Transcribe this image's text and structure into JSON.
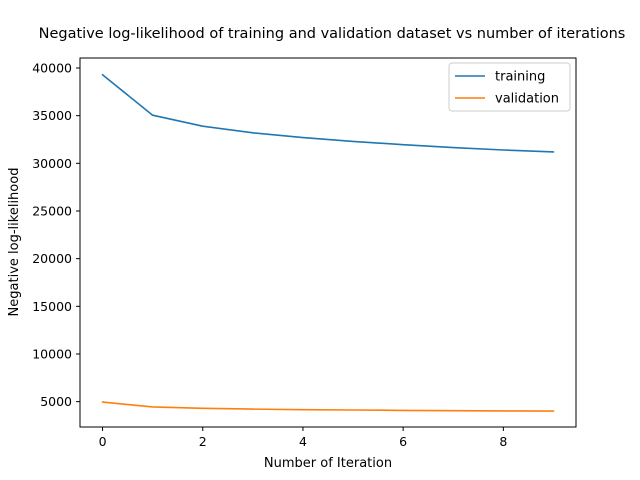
{
  "chart_data": {
    "type": "line",
    "title": "Negative log-likelihood of training and validation dataset vs number of iterations",
    "xlabel": "Number of Iteration",
    "ylabel": "Negative log-likelihood",
    "x": [
      0,
      1,
      2,
      3,
      4,
      5,
      6,
      7,
      8,
      9
    ],
    "xlim": [
      -0.45,
      9.45
    ],
    "ylim": [
      2340,
      41050
    ],
    "xticks": [
      0,
      2,
      4,
      6,
      8
    ],
    "yticks": [
      5000,
      10000,
      15000,
      20000,
      25000,
      30000,
      35000,
      40000
    ],
    "grid": false,
    "legend_position": "top-right",
    "series": [
      {
        "name": "training",
        "color": "#1f77b4",
        "values": [
          39300,
          35050,
          33900,
          33200,
          32700,
          32300,
          31950,
          31650,
          31400,
          31200
        ]
      },
      {
        "name": "validation",
        "color": "#ff7f0e",
        "values": [
          4950,
          4450,
          4300,
          4220,
          4160,
          4120,
          4080,
          4050,
          4030,
          4010
        ]
      }
    ]
  }
}
